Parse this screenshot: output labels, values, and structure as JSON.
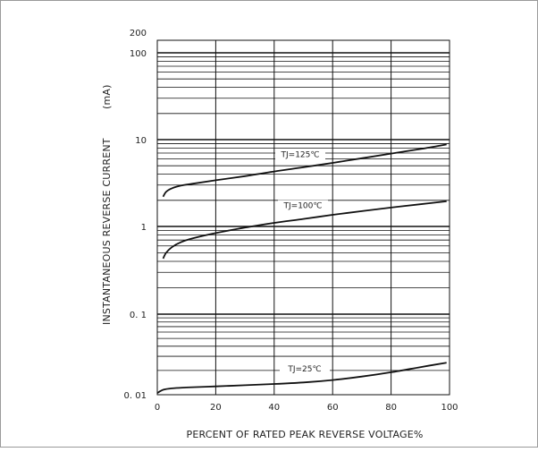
{
  "chart_data": {
    "type": "line",
    "xlabel": "PERCENT OF RATED PEAK REVERSE VOLTAGE%",
    "ylabel": "INSTANTANEOUS REVERSE CURRENT",
    "ylabel_unit": "(mA)",
    "xlim": [
      0,
      100
    ],
    "ylim": [
      0.01,
      200
    ],
    "yscale": "log",
    "grid": true,
    "x_ticks": [
      0,
      20,
      40,
      60,
      80,
      100
    ],
    "x_tick_labels": [
      "0",
      "20",
      "40",
      "60",
      "80",
      "100"
    ],
    "y_ticks": [
      0.01,
      0.1,
      1,
      10,
      100,
      200
    ],
    "y_tick_labels": [
      "0. 01",
      "0. 1",
      "1",
      "10",
      "100",
      "200"
    ],
    "series": [
      {
        "name": "TJ=125℃",
        "x": [
          2,
          3,
          5,
          8,
          12,
          20,
          30,
          40,
          50,
          60,
          70,
          80,
          90,
          99
        ],
        "y": [
          2.2,
          2.5,
          2.75,
          2.95,
          3.1,
          3.4,
          3.8,
          4.3,
          4.8,
          5.4,
          6.1,
          6.9,
          7.8,
          8.8
        ]
      },
      {
        "name": "TJ=100℃",
        "x": [
          2,
          3,
          5,
          8,
          12,
          20,
          30,
          40,
          50,
          60,
          70,
          80,
          90,
          99
        ],
        "y": [
          0.43,
          0.5,
          0.58,
          0.66,
          0.73,
          0.84,
          0.97,
          1.1,
          1.22,
          1.36,
          1.5,
          1.65,
          1.8,
          1.95
        ]
      },
      {
        "name": "TJ=25℃",
        "x": [
          0,
          2,
          5,
          10,
          20,
          30,
          40,
          50,
          60,
          70,
          80,
          90,
          99
        ],
        "y": [
          0.0105,
          0.0115,
          0.012,
          0.0123,
          0.0127,
          0.0131,
          0.0136,
          0.0142,
          0.0152,
          0.0168,
          0.019,
          0.022,
          0.025
        ]
      }
    ]
  }
}
